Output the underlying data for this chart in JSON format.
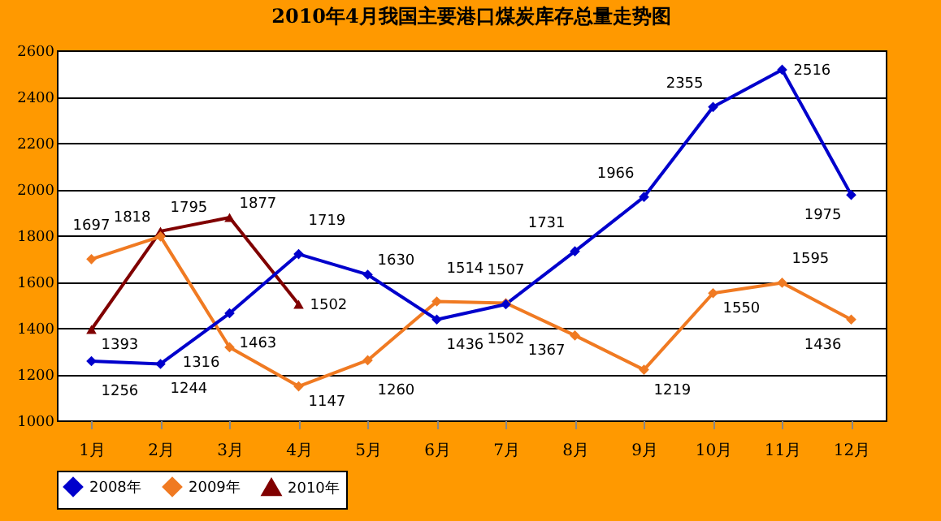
{
  "chart_data": {
    "type": "line",
    "title": "2010年4月我国主要港口煤炭库存总量走势图",
    "categories": [
      "1月",
      "2月",
      "3月",
      "4月",
      "5月",
      "6月",
      "7月",
      "8月",
      "9月",
      "10月",
      "11月",
      "12月"
    ],
    "series": [
      {
        "name": "2008年",
        "color": "#0000cc",
        "marker": "diamond",
        "values": [
          1256,
          1244,
          1463,
          1719,
          1630,
          1436,
          1502,
          1731,
          1966,
          2355,
          2516,
          1975
        ]
      },
      {
        "name": "2009年",
        "color": "#f07a22",
        "marker": "diamond",
        "values": [
          1697,
          1795,
          1316,
          1147,
          1260,
          1514,
          1507,
          1367,
          1219,
          1550,
          1595,
          1436
        ]
      },
      {
        "name": "2010年",
        "color": "#800000",
        "marker": "triangle",
        "values": [
          1393,
          1818,
          1877,
          1502,
          null,
          null,
          null,
          null,
          null,
          null,
          null,
          null
        ]
      }
    ],
    "ylim": [
      1000,
      2600
    ],
    "yticks": [
      1000,
      1200,
      1400,
      1600,
      1800,
      2000,
      2200,
      2400,
      2600
    ],
    "grid": "y",
    "legend": "bottom",
    "data_labels": true,
    "line_style": "solid"
  }
}
